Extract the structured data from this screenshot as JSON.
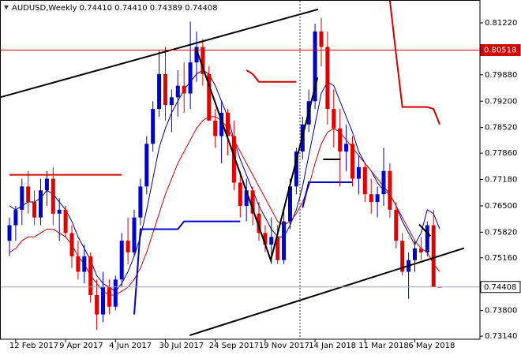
{
  "chart_data": {
    "type": "candlestick",
    "title": "AUDUSD,Weekly  0.74410 0.74410 0.74389 0.74408",
    "categories": [
      null,
      "12 Feb 2017",
      null,
      null,
      null,
      null,
      null,
      null,
      null,
      "9 Apr 2017",
      null,
      null,
      null,
      null,
      null,
      null,
      null,
      "4 Jun 2017",
      null,
      null,
      null,
      null,
      null,
      null,
      null,
      "30 Jul 2017",
      null,
      null,
      null,
      null,
      null,
      null,
      null,
      "24 Sep 2017",
      null,
      null,
      null,
      null,
      null,
      null,
      null,
      "19 Nov 2017",
      null,
      null,
      null,
      null,
      null,
      null,
      null,
      "14 Jan 2018",
      null,
      null,
      null,
      null,
      null,
      null,
      null,
      "11 Mar 2018",
      null,
      null,
      null,
      null,
      null,
      null,
      null,
      "6 May 2018",
      null,
      null,
      null,
      null
    ],
    "open": [
      0.756,
      0.76,
      0.764,
      0.77,
      0.766,
      0.762,
      0.769,
      0.772,
      0.763,
      0.764,
      0.758,
      0.752,
      0.748,
      0.752,
      0.742,
      0.737,
      0.744,
      0.739,
      0.746,
      0.756,
      0.753,
      0.762,
      0.77,
      0.781,
      0.79,
      0.799,
      0.791,
      0.793,
      0.796,
      0.794,
      0.802,
      0.806,
      0.799,
      0.787,
      0.783,
      0.789,
      0.783,
      0.771,
      0.765,
      0.769,
      0.763,
      0.758,
      0.755,
      0.757,
      0.751,
      0.761,
      0.77,
      0.779,
      0.786,
      0.792,
      0.81,
      0.806,
      0.79,
      0.785,
      0.779,
      0.781,
      0.772,
      0.775,
      0.768,
      0.766,
      0.768,
      0.774,
      0.764,
      0.756,
      0.748,
      0.751,
      0.754,
      0.753,
      0.76,
      0.7441
    ],
    "high": [
      0.762,
      0.765,
      0.772,
      0.774,
      0.769,
      0.772,
      0.774,
      0.775,
      0.767,
      0.765,
      0.76,
      0.756,
      0.755,
      0.753,
      0.746,
      0.748,
      0.746,
      0.747,
      0.758,
      0.762,
      0.764,
      0.772,
      0.783,
      0.792,
      0.805,
      0.806,
      0.795,
      0.8,
      0.802,
      0.8125,
      0.81,
      0.808,
      0.801,
      0.79,
      0.792,
      0.79,
      0.787,
      0.774,
      0.772,
      0.77,
      0.766,
      0.76,
      0.762,
      0.76,
      0.764,
      0.772,
      0.78,
      0.788,
      0.795,
      0.812,
      0.8135,
      0.81,
      0.795,
      0.79,
      0.786,
      0.783,
      0.778,
      0.776,
      0.772,
      0.77,
      0.78,
      0.776,
      0.766,
      0.758,
      0.753,
      0.756,
      0.757,
      0.761,
      0.764,
      0.7441
    ],
    "low": [
      0.752,
      0.756,
      0.76,
      0.763,
      0.76,
      0.76,
      0.765,
      0.76,
      0.756,
      0.757,
      0.749,
      0.746,
      0.745,
      0.74,
      0.733,
      0.735,
      0.737,
      0.738,
      0.744,
      0.75,
      0.752,
      0.76,
      0.768,
      0.779,
      0.788,
      0.787,
      0.784,
      0.788,
      0.789,
      0.79,
      0.797,
      0.796,
      0.787,
      0.78,
      0.776,
      0.778,
      0.769,
      0.762,
      0.761,
      0.76,
      0.756,
      0.753,
      0.75,
      0.75,
      0.75,
      0.759,
      0.768,
      0.777,
      0.784,
      0.79,
      0.801,
      0.786,
      0.78,
      0.77,
      0.774,
      0.77,
      0.768,
      0.766,
      0.763,
      0.762,
      0.765,
      0.762,
      0.754,
      0.747,
      0.741,
      0.748,
      0.751,
      0.752,
      0.744,
      0.74389
    ],
    "close": [
      0.76,
      0.764,
      0.77,
      0.766,
      0.762,
      0.769,
      0.772,
      0.763,
      0.764,
      0.758,
      0.752,
      0.748,
      0.752,
      0.742,
      0.737,
      0.744,
      0.739,
      0.746,
      0.756,
      0.753,
      0.762,
      0.77,
      0.781,
      0.79,
      0.799,
      0.791,
      0.793,
      0.796,
      0.794,
      0.802,
      0.806,
      0.799,
      0.787,
      0.783,
      0.789,
      0.783,
      0.771,
      0.765,
      0.769,
      0.763,
      0.758,
      0.755,
      0.757,
      0.751,
      0.761,
      0.77,
      0.779,
      0.786,
      0.792,
      0.81,
      0.806,
      0.79,
      0.785,
      0.779,
      0.781,
      0.772,
      0.775,
      0.768,
      0.766,
      0.768,
      0.774,
      0.764,
      0.756,
      0.748,
      0.751,
      0.754,
      0.753,
      0.76,
      0.7441,
      0.74408
    ],
    "up_color": "#0000cc",
    "down_color": "#e00000",
    "lines": [
      {
        "color": "#00008b",
        "width": 1,
        "values": [
          0.765,
          0.764,
          0.765,
          0.766,
          0.766,
          0.767,
          0.769,
          0.768,
          0.766,
          0.764,
          0.761,
          0.757,
          0.754,
          0.751,
          0.747,
          0.745,
          0.744,
          0.743,
          0.745,
          0.748,
          0.752,
          0.757,
          0.764,
          0.772,
          0.78,
          0.785,
          0.789,
          0.792,
          0.795,
          0.797,
          0.799,
          0.8,
          0.799,
          0.796,
          0.792,
          0.788,
          0.782,
          0.777,
          0.773,
          0.769,
          0.765,
          0.762,
          0.759,
          0.757,
          0.757,
          0.76,
          0.764,
          0.77,
          0.778,
          0.786,
          0.794,
          0.797,
          0.796,
          0.792,
          0.788,
          0.784,
          0.779,
          0.776,
          0.774,
          0.771,
          0.769,
          0.768,
          0.765,
          0.761,
          0.758,
          0.755,
          0.758,
          0.764,
          0.763,
          0.759
        ]
      },
      {
        "color": "#d00000",
        "width": 1,
        "values": [
          0.753,
          0.754,
          0.756,
          0.757,
          0.757,
          0.758,
          0.759,
          0.759,
          0.758,
          0.757,
          0.755,
          0.752,
          0.75,
          0.747,
          0.745,
          0.743,
          0.742,
          0.742,
          0.743,
          0.744,
          0.746,
          0.749,
          0.753,
          0.758,
          0.763,
          0.768,
          0.772,
          0.776,
          0.779,
          0.782,
          0.785,
          0.787,
          0.788,
          0.788,
          0.787,
          0.785,
          0.782,
          0.779,
          0.776,
          0.773,
          0.77,
          0.767,
          0.764,
          0.761,
          0.76,
          0.761,
          0.763,
          0.766,
          0.77,
          0.776,
          0.781,
          0.784,
          0.785,
          0.784,
          0.782,
          0.78,
          0.778,
          0.776,
          0.774,
          0.772,
          0.77,
          0.768,
          0.765,
          0.762,
          0.759,
          0.756,
          0.754,
          0.753,
          0.75,
          0.748
        ]
      },
      {
        "color": "#d00000",
        "width": 2,
        "values": [
          0.773,
          0.773,
          0.773,
          0.773,
          0.773,
          0.773,
          0.773,
          0.773,
          0.773,
          0.773,
          0.773,
          0.773,
          0.773,
          0.773,
          0.773,
          0.773,
          0.773,
          0.773,
          0.773,
          null,
          null,
          null,
          null,
          null,
          null,
          null,
          null,
          null,
          null,
          null,
          null,
          null,
          null,
          null,
          null,
          null,
          null,
          null,
          0.8,
          0.799,
          0.797,
          0.797,
          0.797,
          0.797,
          0.797,
          0.797,
          0.797,
          null,
          null,
          null,
          null,
          null,
          null,
          null,
          null,
          null,
          null,
          null,
          null,
          null,
          null,
          0.818,
          0.804,
          0.7905,
          0.7905,
          0.7905,
          0.7905,
          0.7905,
          0.79,
          0.786
        ]
      },
      {
        "color": "#0000cc",
        "width": 2,
        "values": [
          null,
          null,
          null,
          null,
          null,
          null,
          null,
          null,
          null,
          null,
          null,
          null,
          null,
          null,
          null,
          null,
          null,
          null,
          null,
          null,
          0.737,
          0.759,
          0.759,
          0.759,
          0.759,
          0.759,
          0.759,
          0.759,
          0.761,
          0.761,
          0.761,
          0.761,
          0.761,
          0.761,
          0.761,
          0.761,
          0.761,
          0.761,
          null,
          null,
          null,
          null,
          null,
          null,
          null,
          null,
          null,
          0.7645,
          0.7711,
          0.7711,
          0.7711,
          0.7711,
          0.7711,
          0.7711,
          0.7711,
          0.7711,
          null,
          null,
          null,
          null,
          null,
          null,
          null,
          null,
          null,
          null,
          null,
          null,
          null,
          null
        ]
      }
    ],
    "trendlines": [
      {
        "x": [
          -1.5,
          49.5
        ],
        "y": [
          0.793,
          0.8157
        ]
      },
      {
        "x": [
          28.9,
          72.9
        ],
        "y": [
          0.7316,
          0.7541
        ]
      },
      {
        "x": [
          29.9,
          41.9,
          49.4
        ],
        "y": [
          0.8057,
          0.751,
          0.7981
        ]
      },
      {
        "x": [
          50.3,
          53.1
        ],
        "y": [
          0.777,
          0.777
        ]
      },
      {
        "x": [
          65.7,
          67.5
        ],
        "y": [
          0.7602,
          0.7572
        ]
      }
    ],
    "price_lines": [
      {
        "value": 0.80518,
        "color": "#d00000"
      },
      {
        "value": 0.74408,
        "color": "#9aa0a8"
      }
    ],
    "ylim": [
      0.7306,
      0.8179
    ],
    "yticks": [
      {
        "value": 0.8122,
        "label": "0.81220"
      },
      {
        "value": 0.7988,
        "label": "0.79880"
      },
      {
        "value": 0.792,
        "label": "0.79200"
      },
      {
        "value": 0.7852,
        "label": "0.78520"
      },
      {
        "value": 0.7786,
        "label": "0.77860"
      },
      {
        "value": 0.7718,
        "label": "0.77180"
      },
      {
        "value": 0.765,
        "label": "0.76500"
      },
      {
        "value": 0.7582,
        "label": "0.75820"
      },
      {
        "value": 0.7516,
        "label": "0.75160"
      },
      {
        "value": 0.738,
        "label": "0.73800"
      },
      {
        "value": 0.7314,
        "label": "0.73140"
      }
    ]
  }
}
